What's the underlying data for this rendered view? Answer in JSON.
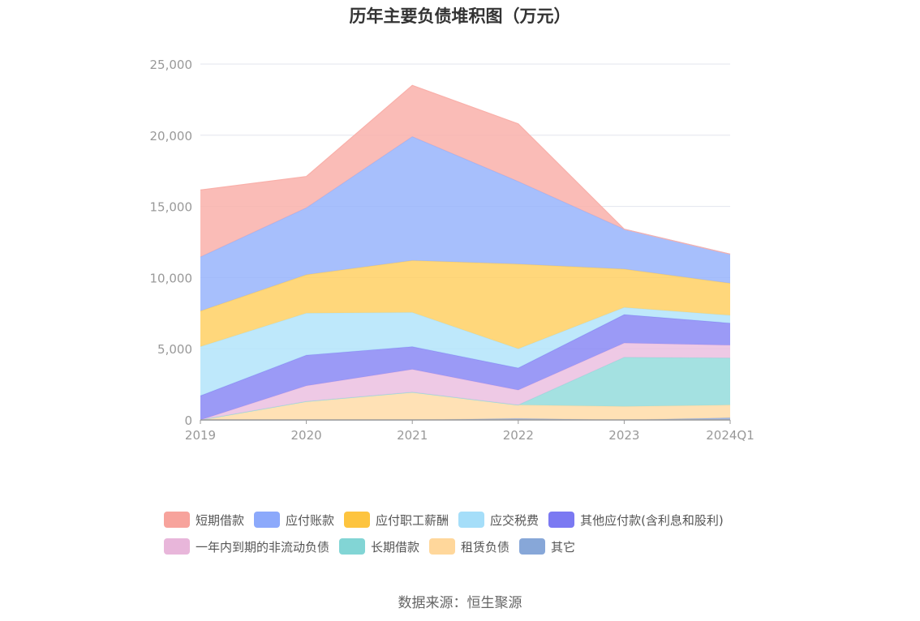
{
  "chart_data": {
    "type": "area",
    "stacked": true,
    "title": "历年主要负债堆积图（万元）",
    "categories": [
      "2019",
      "2020",
      "2021",
      "2022",
      "2023",
      "2024Q1"
    ],
    "ylim": [
      0,
      25000
    ],
    "yticks": [
      "0",
      "5,000",
      "10,000",
      "15,000",
      "20,000",
      "25,000"
    ],
    "ytick_values": [
      0,
      5000,
      10000,
      15000,
      20000,
      25000
    ],
    "grid": true,
    "legend_position": "bottom",
    "series": [
      {
        "name": "其它",
        "color": "#8faadc",
        "values": [
          0,
          0,
          0,
          100,
          0,
          150
        ]
      },
      {
        "name": "租赁负债",
        "color": "#ffdca8",
        "values": [
          0,
          1300,
          1950,
          950,
          950,
          900
        ]
      },
      {
        "name": "长期借款",
        "color": "#94dcdc",
        "values": [
          0,
          0,
          0,
          0,
          3450,
          3300
        ]
      },
      {
        "name": "一年内到期的非流动负债",
        "color": "#ebbfe0",
        "values": [
          0,
          1100,
          1600,
          1050,
          1000,
          900
        ]
      },
      {
        "name": "其他应付款(含利息和股利)",
        "color": "#8a88f4",
        "values": [
          1700,
          2150,
          1600,
          1550,
          2000,
          1550
        ]
      },
      {
        "name": "应交税费",
        "color": "#b3e4fa",
        "values": [
          3450,
          2950,
          2400,
          1350,
          500,
          550
        ]
      },
      {
        "name": "应付职工薪酬",
        "color": "#ffd064",
        "values": [
          2500,
          2700,
          3650,
          5950,
          2700,
          2250
        ]
      },
      {
        "name": "应付账款",
        "color": "#98b4fc",
        "values": [
          3800,
          4700,
          8700,
          5800,
          2800,
          2050
        ]
      },
      {
        "name": "短期借款",
        "color": "#f9b0aa",
        "values": [
          4700,
          2200,
          3600,
          4050,
          0,
          0
        ]
      }
    ]
  },
  "legend": [
    {
      "label": "短期借款",
      "color": "#f7a39c"
    },
    {
      "label": "应付账款",
      "color": "#8ca9fb"
    },
    {
      "label": "应付职工薪酬",
      "color": "#fdc43f"
    },
    {
      "label": "应交税费",
      "color": "#a5def9"
    },
    {
      "label": "其他应付款(含利息和股利)",
      "color": "#7b79f2"
    },
    {
      "label": "一年内到期的非流动负债",
      "color": "#e8b6da"
    },
    {
      "label": "长期借款",
      "color": "#82d5d5"
    },
    {
      "label": "租赁负债",
      "color": "#ffd79b"
    },
    {
      "label": "其它",
      "color": "#87a7d8"
    }
  ],
  "source": "数据来源：恒生聚源"
}
